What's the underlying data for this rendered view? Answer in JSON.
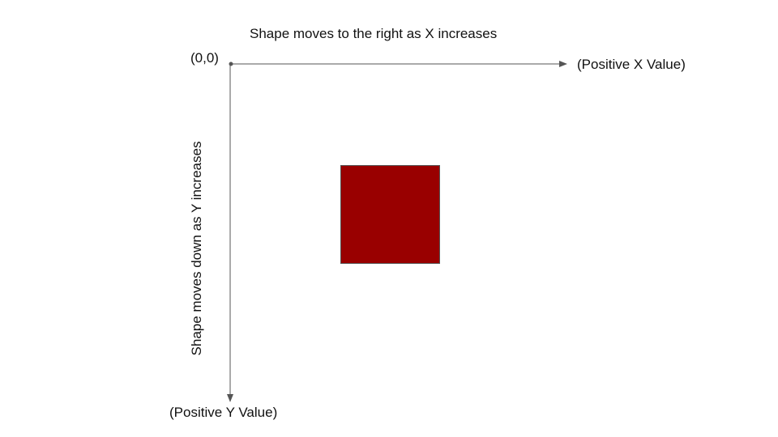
{
  "diagram": {
    "x_caption": "Shape moves to the right as X increases",
    "y_caption": "Shape moves down as Y increases",
    "origin_label": "(0,0)",
    "x_axis_label": "(Positive X Value)",
    "y_axis_label": "(Positive Y Value)"
  },
  "colors": {
    "axis": "#555555",
    "square_fill": "#990000",
    "square_stroke": "#555555",
    "text": "#111111"
  }
}
